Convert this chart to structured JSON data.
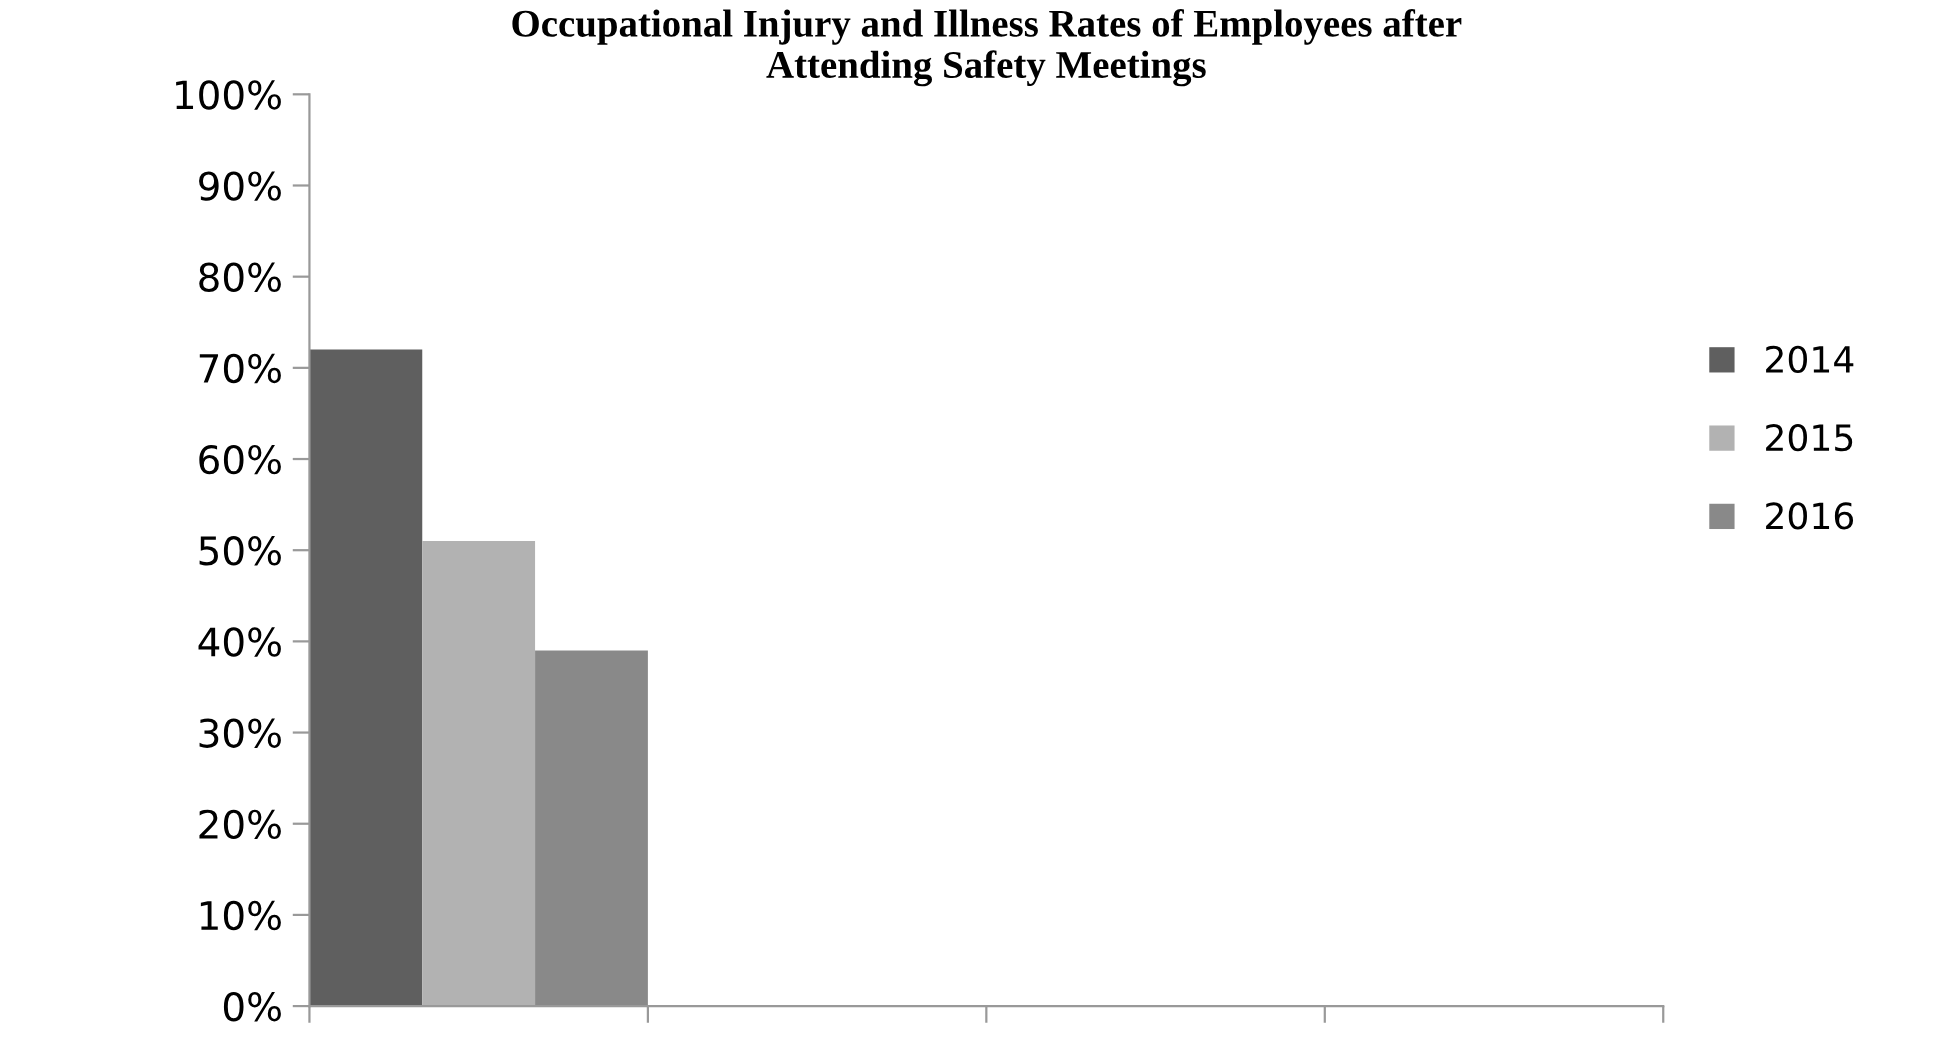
{
  "chart_data": {
    "type": "bar",
    "title": "Occupational Injury and Illness Rates of Employees after\nAttending Safety Meetings",
    "categories": [
      null,
      null,
      null,
      null
    ],
    "series": [
      {
        "name": "2014",
        "color": "#5f5f5f",
        "values": [
          72,
          null,
          null,
          null
        ]
      },
      {
        "name": "2015",
        "color": "#b2b2b2",
        "values": [
          51,
          null,
          null,
          null
        ]
      },
      {
        "name": "2016",
        "color": "#898989",
        "values": [
          39,
          null,
          null,
          null
        ]
      }
    ],
    "ylim": [
      0,
      100
    ],
    "yticks": [
      {
        "value": 0,
        "label": "0%"
      },
      {
        "value": 10,
        "label": "10%"
      },
      {
        "value": 20,
        "label": "20%"
      },
      {
        "value": 30,
        "label": "30%"
      },
      {
        "value": 40,
        "label": "40%"
      },
      {
        "value": 50,
        "label": "50%"
      },
      {
        "value": 60,
        "label": "60%"
      },
      {
        "value": 70,
        "label": "70%"
      },
      {
        "value": 80,
        "label": "80%"
      },
      {
        "value": 90,
        "label": "90%"
      },
      {
        "value": 100,
        "label": "100%"
      }
    ],
    "grid": false,
    "legend": "right"
  }
}
